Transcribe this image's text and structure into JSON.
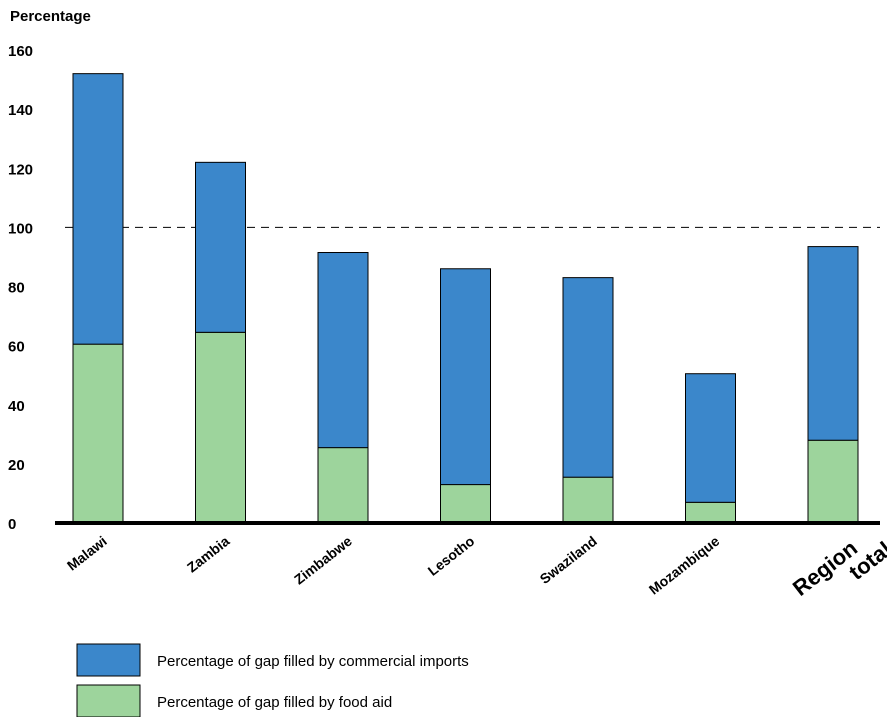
{
  "chart_data": {
    "type": "bar",
    "stacked": true,
    "ylabel": "Percentage",
    "ylim": [
      0,
      160
    ],
    "yticks": [
      0,
      20,
      40,
      60,
      80,
      100,
      120,
      140,
      160
    ],
    "reference_line": 100,
    "grid": false,
    "categories": [
      "Malawi",
      "Zambia",
      "Zimbabwe",
      "Lesotho",
      "Swaziland",
      "Mozambique",
      "Region total"
    ],
    "series": [
      {
        "name": "Percentage of gap filled by food aid",
        "color": "#9dd49c",
        "values": [
          60.5,
          64.5,
          25.5,
          13,
          15.5,
          7,
          28
        ]
      },
      {
        "name": "Percentage of gap filled by commercial imports",
        "color": "#3b87cb",
        "values": [
          91.5,
          57.5,
          66,
          73,
          67.5,
          43.5,
          65.5
        ]
      }
    ],
    "legend_placement": "bottom-left",
    "legend_order": [
      1,
      0
    ]
  }
}
